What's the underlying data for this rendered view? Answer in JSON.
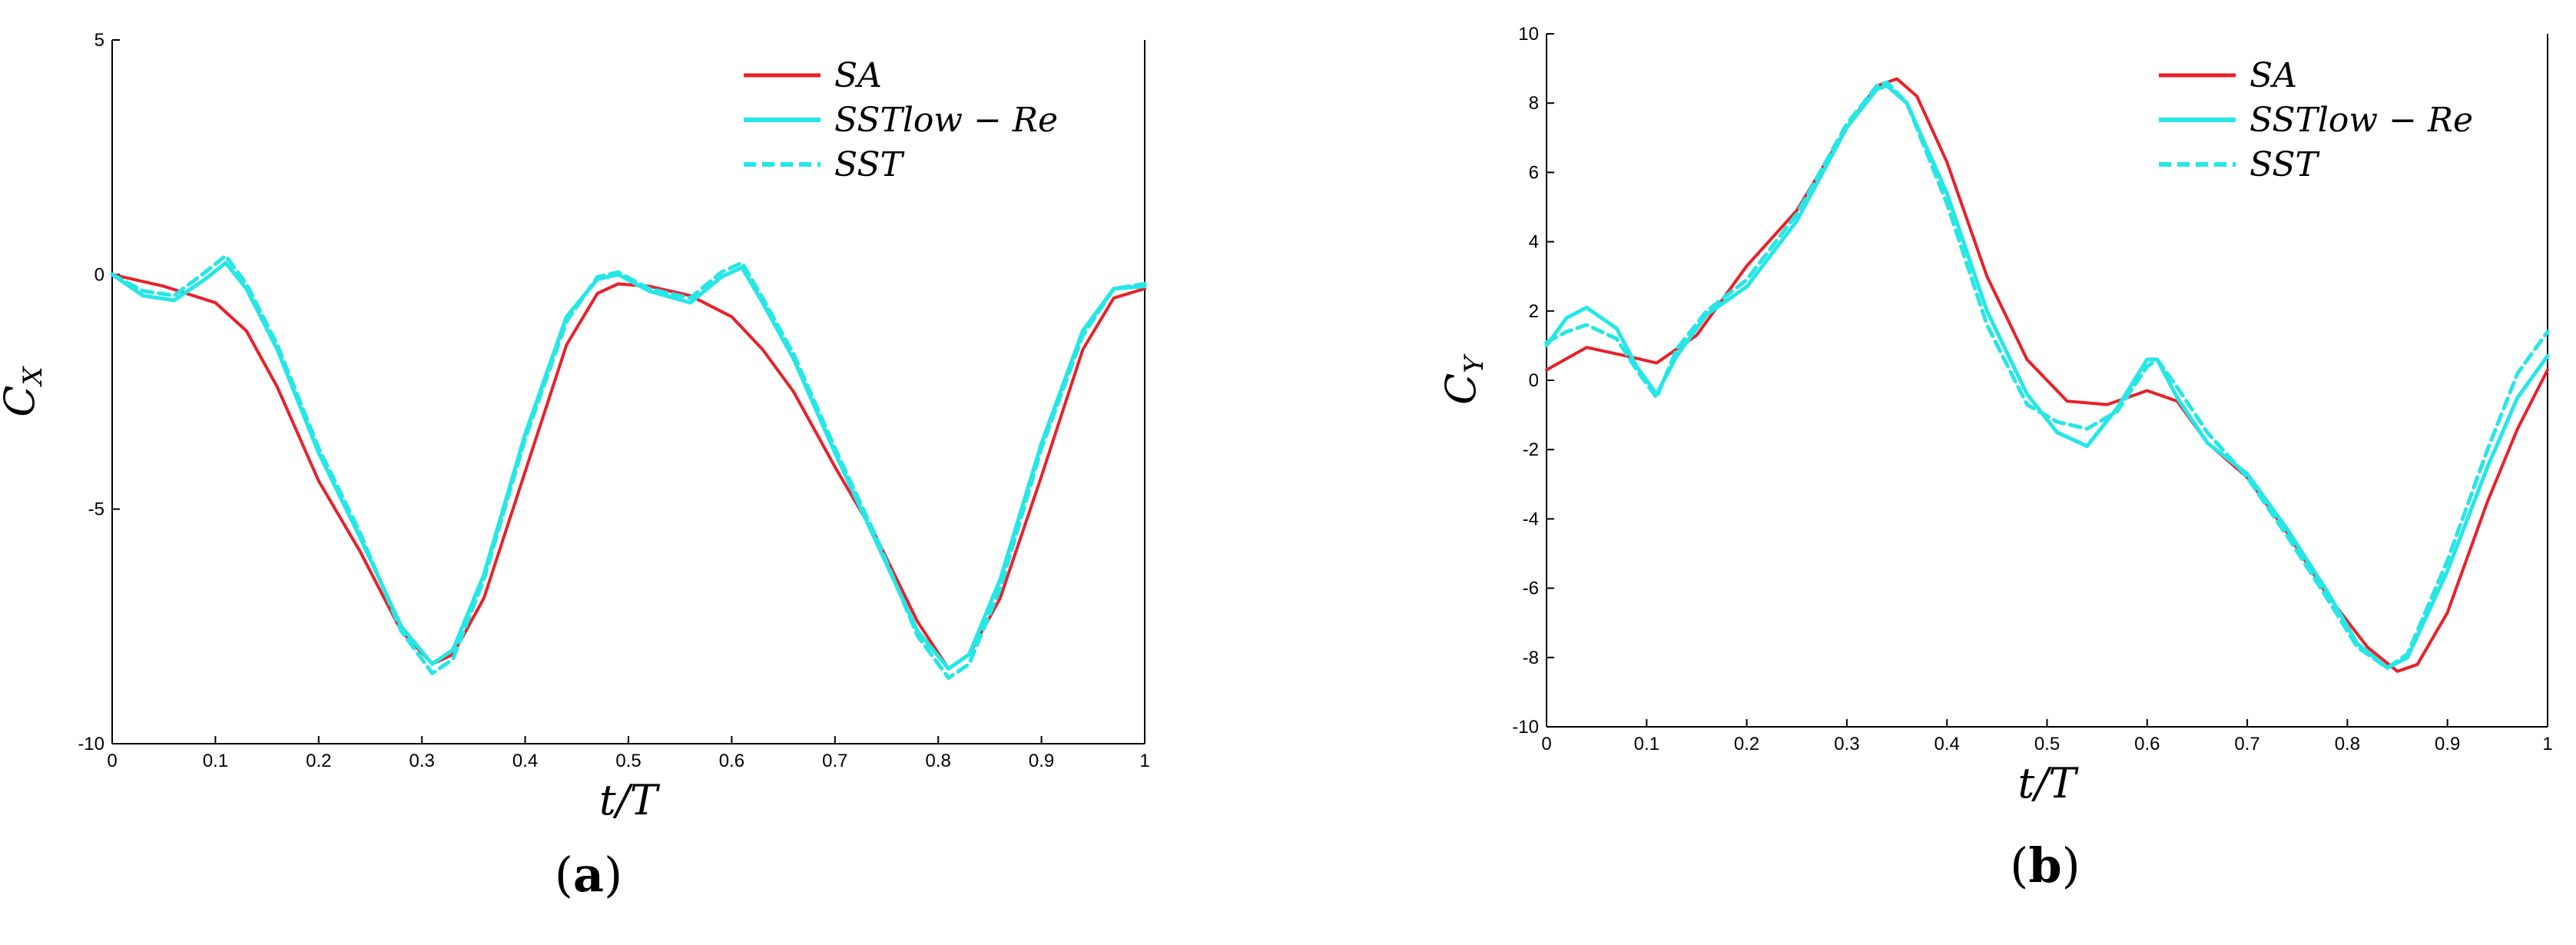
{
  "colors": {
    "sa": "#e8202a",
    "sst": "#26e6e6",
    "axis": "#000000"
  },
  "chart_data": [
    {
      "type": "line",
      "panel_label": "a",
      "xlabel": "t/T",
      "ylabel": "C_X",
      "xlim": [
        0,
        1
      ],
      "ylim": [
        -10,
        5
      ],
      "xticks": [
        "0",
        "0.1",
        "0.2",
        "0.3",
        "0.4",
        "0.5",
        "0.6",
        "0.7",
        "0.8",
        "0.9",
        "1"
      ],
      "yticks": [
        "5",
        "0",
        "-5",
        "-10"
      ],
      "legend_placement": "top-right",
      "grid": false,
      "series": [
        {
          "name": "SA",
          "color": "#e8202a",
          "dash": "solid",
          "x": [
            0,
            0.05,
            0.1,
            0.13,
            0.16,
            0.2,
            0.24,
            0.28,
            0.31,
            0.33,
            0.36,
            0.4,
            0.44,
            0.47,
            0.49,
            0.52,
            0.56,
            0.6,
            0.63,
            0.66,
            0.7,
            0.74,
            0.78,
            0.81,
            0.83,
            0.86,
            0.9,
            0.94,
            0.97,
            1
          ],
          "y": [
            0,
            -0.25,
            -0.6,
            -1.2,
            -2.4,
            -4.4,
            -5.9,
            -7.6,
            -8.3,
            -8.1,
            -6.9,
            -4.2,
            -1.5,
            -0.4,
            -0.2,
            -0.25,
            -0.45,
            -0.9,
            -1.6,
            -2.5,
            -4.1,
            -5.6,
            -7.4,
            -8.4,
            -8.1,
            -6.9,
            -4.3,
            -1.6,
            -0.5,
            -0.3
          ]
        },
        {
          "name": "SSTlow − Re",
          "color": "#26e6e6",
          "dash": "solid",
          "x": [
            0,
            0.03,
            0.06,
            0.09,
            0.11,
            0.13,
            0.16,
            0.2,
            0.24,
            0.28,
            0.31,
            0.33,
            0.36,
            0.4,
            0.44,
            0.47,
            0.49,
            0.52,
            0.56,
            0.59,
            0.61,
            0.63,
            0.66,
            0.7,
            0.74,
            0.78,
            0.81,
            0.83,
            0.86,
            0.9,
            0.94,
            0.97,
            1
          ],
          "y": [
            0,
            -0.45,
            -0.55,
            -0.1,
            0.25,
            -0.3,
            -1.6,
            -3.8,
            -5.6,
            -7.5,
            -8.3,
            -8.0,
            -6.4,
            -3.4,
            -0.9,
            -0.1,
            0.0,
            -0.35,
            -0.6,
            -0.05,
            0.15,
            -0.6,
            -1.8,
            -3.8,
            -5.7,
            -7.6,
            -8.4,
            -8.1,
            -6.5,
            -3.6,
            -1.2,
            -0.3,
            -0.25
          ]
        },
        {
          "name": "SST",
          "color": "#26e6e6",
          "dash": "dashed",
          "x": [
            0,
            0.03,
            0.06,
            0.09,
            0.11,
            0.13,
            0.16,
            0.2,
            0.24,
            0.28,
            0.31,
            0.33,
            0.36,
            0.4,
            0.44,
            0.47,
            0.49,
            0.52,
            0.56,
            0.59,
            0.61,
            0.63,
            0.66,
            0.7,
            0.74,
            0.78,
            0.81,
            0.83,
            0.86,
            0.9,
            0.94,
            0.97,
            1
          ],
          "y": [
            0,
            -0.35,
            -0.45,
            0.05,
            0.4,
            -0.2,
            -1.5,
            -3.7,
            -5.5,
            -7.6,
            -8.5,
            -8.2,
            -6.5,
            -3.5,
            -1.0,
            -0.05,
            0.05,
            -0.3,
            -0.5,
            0.05,
            0.25,
            -0.5,
            -1.7,
            -3.7,
            -5.6,
            -7.7,
            -8.6,
            -8.3,
            -6.7,
            -3.7,
            -1.3,
            -0.3,
            -0.2
          ]
        }
      ]
    },
    {
      "type": "line",
      "panel_label": "b",
      "xlabel": "t/T",
      "ylabel": "C_Y",
      "xlim": [
        0,
        1
      ],
      "ylim": [
        -10,
        10
      ],
      "xticks": [
        "0",
        "0.1",
        "0.2",
        "0.3",
        "0.4",
        "0.5",
        "0.6",
        "0.7",
        "0.8",
        "0.9",
        "1"
      ],
      "yticks": [
        "10",
        "8",
        "6",
        "4",
        "2",
        "0",
        "-2",
        "-4",
        "-6",
        "-8",
        "-10"
      ],
      "legend_placement": "top-right",
      "grid": false,
      "series": [
        {
          "name": "SA",
          "color": "#e8202a",
          "dash": "solid",
          "x": [
            0,
            0.04,
            0.08,
            0.11,
            0.15,
            0.2,
            0.25,
            0.3,
            0.33,
            0.35,
            0.37,
            0.4,
            0.44,
            0.48,
            0.52,
            0.56,
            0.6,
            0.63,
            0.66,
            0.7,
            0.74,
            0.78,
            0.82,
            0.85,
            0.87,
            0.9,
            0.94,
            0.97,
            1
          ],
          "y": [
            0.3,
            0.95,
            0.7,
            0.5,
            1.3,
            3.3,
            4.9,
            7.3,
            8.5,
            8.7,
            8.2,
            6.3,
            3.0,
            0.6,
            -0.6,
            -0.7,
            -0.3,
            -0.6,
            -1.8,
            -2.8,
            -4.4,
            -6.2,
            -7.7,
            -8.4,
            -8.2,
            -6.7,
            -3.5,
            -1.4,
            0.3
          ]
        },
        {
          "name": "SSTlow − Re",
          "color": "#26e6e6",
          "dash": "solid",
          "x": [
            0,
            0.02,
            0.04,
            0.07,
            0.09,
            0.11,
            0.13,
            0.16,
            0.2,
            0.25,
            0.3,
            0.33,
            0.34,
            0.36,
            0.4,
            0.44,
            0.48,
            0.51,
            0.54,
            0.57,
            0.6,
            0.61,
            0.63,
            0.66,
            0.7,
            0.74,
            0.78,
            0.81,
            0.84,
            0.86,
            0.9,
            0.94,
            0.97,
            1
          ],
          "y": [
            1.0,
            1.8,
            2.1,
            1.5,
            0.4,
            -0.4,
            0.7,
            1.9,
            2.7,
            4.6,
            7.3,
            8.4,
            8.5,
            8.0,
            5.4,
            2.0,
            -0.4,
            -1.5,
            -1.9,
            -0.8,
            0.6,
            0.6,
            -0.5,
            -1.8,
            -2.7,
            -4.3,
            -6.1,
            -7.6,
            -8.3,
            -8.0,
            -5.5,
            -2.5,
            -0.5,
            0.7
          ]
        },
        {
          "name": "SST",
          "color": "#26e6e6",
          "dash": "dashed",
          "x": [
            0,
            0.02,
            0.04,
            0.07,
            0.09,
            0.11,
            0.13,
            0.16,
            0.2,
            0.25,
            0.3,
            0.33,
            0.34,
            0.36,
            0.4,
            0.44,
            0.48,
            0.51,
            0.54,
            0.57,
            0.6,
            0.61,
            0.63,
            0.66,
            0.7,
            0.74,
            0.78,
            0.81,
            0.84,
            0.86,
            0.9,
            0.94,
            0.97,
            1
          ],
          "y": [
            1.1,
            1.4,
            1.6,
            1.2,
            0.3,
            -0.5,
            0.9,
            2.0,
            2.9,
            4.8,
            7.4,
            8.5,
            8.6,
            8.0,
            5.1,
            1.6,
            -0.7,
            -1.2,
            -1.4,
            -0.9,
            0.4,
            0.6,
            -0.2,
            -1.5,
            -2.8,
            -4.5,
            -6.3,
            -7.7,
            -8.3,
            -7.9,
            -5.2,
            -2.0,
            0.2,
            1.4
          ]
        }
      ]
    }
  ]
}
